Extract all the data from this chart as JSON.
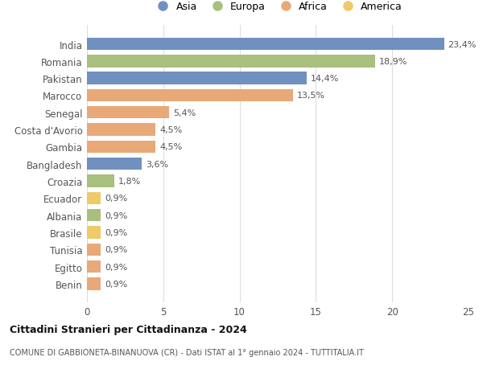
{
  "countries": [
    "India",
    "Romania",
    "Pakistan",
    "Marocco",
    "Senegal",
    "Costa d'Avorio",
    "Gambia",
    "Bangladesh",
    "Croazia",
    "Ecuador",
    "Albania",
    "Brasile",
    "Tunisia",
    "Egitto",
    "Benin"
  ],
  "values": [
    23.4,
    18.9,
    14.4,
    13.5,
    5.4,
    4.5,
    4.5,
    3.6,
    1.8,
    0.9,
    0.9,
    0.9,
    0.9,
    0.9,
    0.9
  ],
  "labels": [
    "23,4%",
    "18,9%",
    "14,4%",
    "13,5%",
    "5,4%",
    "4,5%",
    "4,5%",
    "3,6%",
    "1,8%",
    "0,9%",
    "0,9%",
    "0,9%",
    "0,9%",
    "0,9%",
    "0,9%"
  ],
  "continents": [
    "Asia",
    "Europa",
    "Asia",
    "Africa",
    "Africa",
    "Africa",
    "Africa",
    "Asia",
    "Europa",
    "America",
    "Europa",
    "America",
    "Africa",
    "Africa",
    "Africa"
  ],
  "colors": {
    "Asia": "#7090c0",
    "Europa": "#a8bf7e",
    "Africa": "#e8a878",
    "America": "#f0c96a"
  },
  "legend_order": [
    "Asia",
    "Europa",
    "Africa",
    "America"
  ],
  "title1": "Cittadini Stranieri per Cittadinanza - 2024",
  "title2": "COMUNE DI GABBIONETA-BINANUOVA (CR) - Dati ISTAT al 1° gennaio 2024 - TUTTITALIA.IT",
  "xlim": [
    0,
    25
  ],
  "xticks": [
    0,
    5,
    10,
    15,
    20,
    25
  ],
  "bg_color": "#ffffff",
  "grid_color": "#dddddd"
}
